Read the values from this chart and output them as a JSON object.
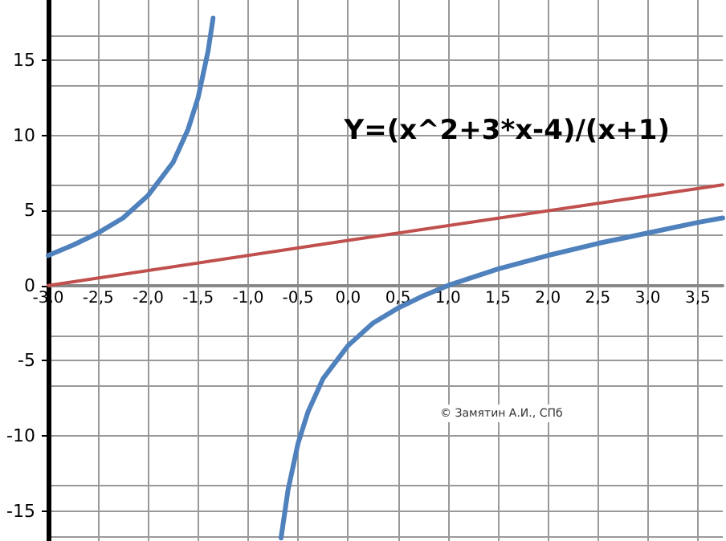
{
  "chart_data": {
    "type": "line",
    "title": "Y=(x^2+3*x-4)/(x+1)",
    "annotations": [
      "© Замятин А.И., СПб"
    ],
    "xlim": [
      -3,
      3.75
    ],
    "ylim": [
      -17,
      19
    ],
    "xticks": [
      {
        "value": -3,
        "label": "-3,0"
      },
      {
        "value": -2.5,
        "label": "-2,5"
      },
      {
        "value": -2,
        "label": "-2,0"
      },
      {
        "value": -1.5,
        "label": "-1,5"
      },
      {
        "value": -1,
        "label": "-1,0"
      },
      {
        "value": -0.5,
        "label": "-0,5"
      },
      {
        "value": 0,
        "label": "0,0"
      },
      {
        "value": 0.5,
        "label": "0,5"
      },
      {
        "value": 1,
        "label": "1,0"
      },
      {
        "value": 1.5,
        "label": "1,5"
      },
      {
        "value": 2,
        "label": "2,0"
      },
      {
        "value": 2.5,
        "label": "2,5"
      },
      {
        "value": 3,
        "label": "3,0"
      },
      {
        "value": 3.5,
        "label": "3,5"
      }
    ],
    "yticks": [
      -15,
      -10,
      -5,
      0,
      5,
      10,
      15
    ],
    "grid": true,
    "marker": "none",
    "line_style": "solid",
    "series": [
      {
        "color": "#4f81bd",
        "x": [
          -3,
          -2.75,
          -2.5,
          -2.25,
          -2,
          -1.75,
          -1.6,
          -1.5,
          -1.4,
          -1.35,
          -1,
          -0.67,
          -0.6,
          -0.5,
          -0.4,
          -0.25,
          0,
          0.25,
          0.5,
          0.75,
          1,
          1.5,
          2,
          2.5,
          3,
          3.5,
          3.75
        ],
        "values": [
          2,
          2.7,
          3.5,
          4.5,
          6,
          8.2,
          10.4,
          12.5,
          15.6,
          17.8,
          null,
          -16.8,
          -13.6,
          -10.5,
          -8.4,
          -6.2,
          -4,
          -2.5,
          -1.5,
          -0.7,
          0,
          1.1,
          2,
          2.8,
          3.5,
          4.2,
          4.5
        ]
      },
      {
        "color": "#c0504d",
        "x": [
          -3,
          0,
          3.75
        ],
        "values": [
          0,
          3,
          6.7
        ]
      }
    ]
  }
}
